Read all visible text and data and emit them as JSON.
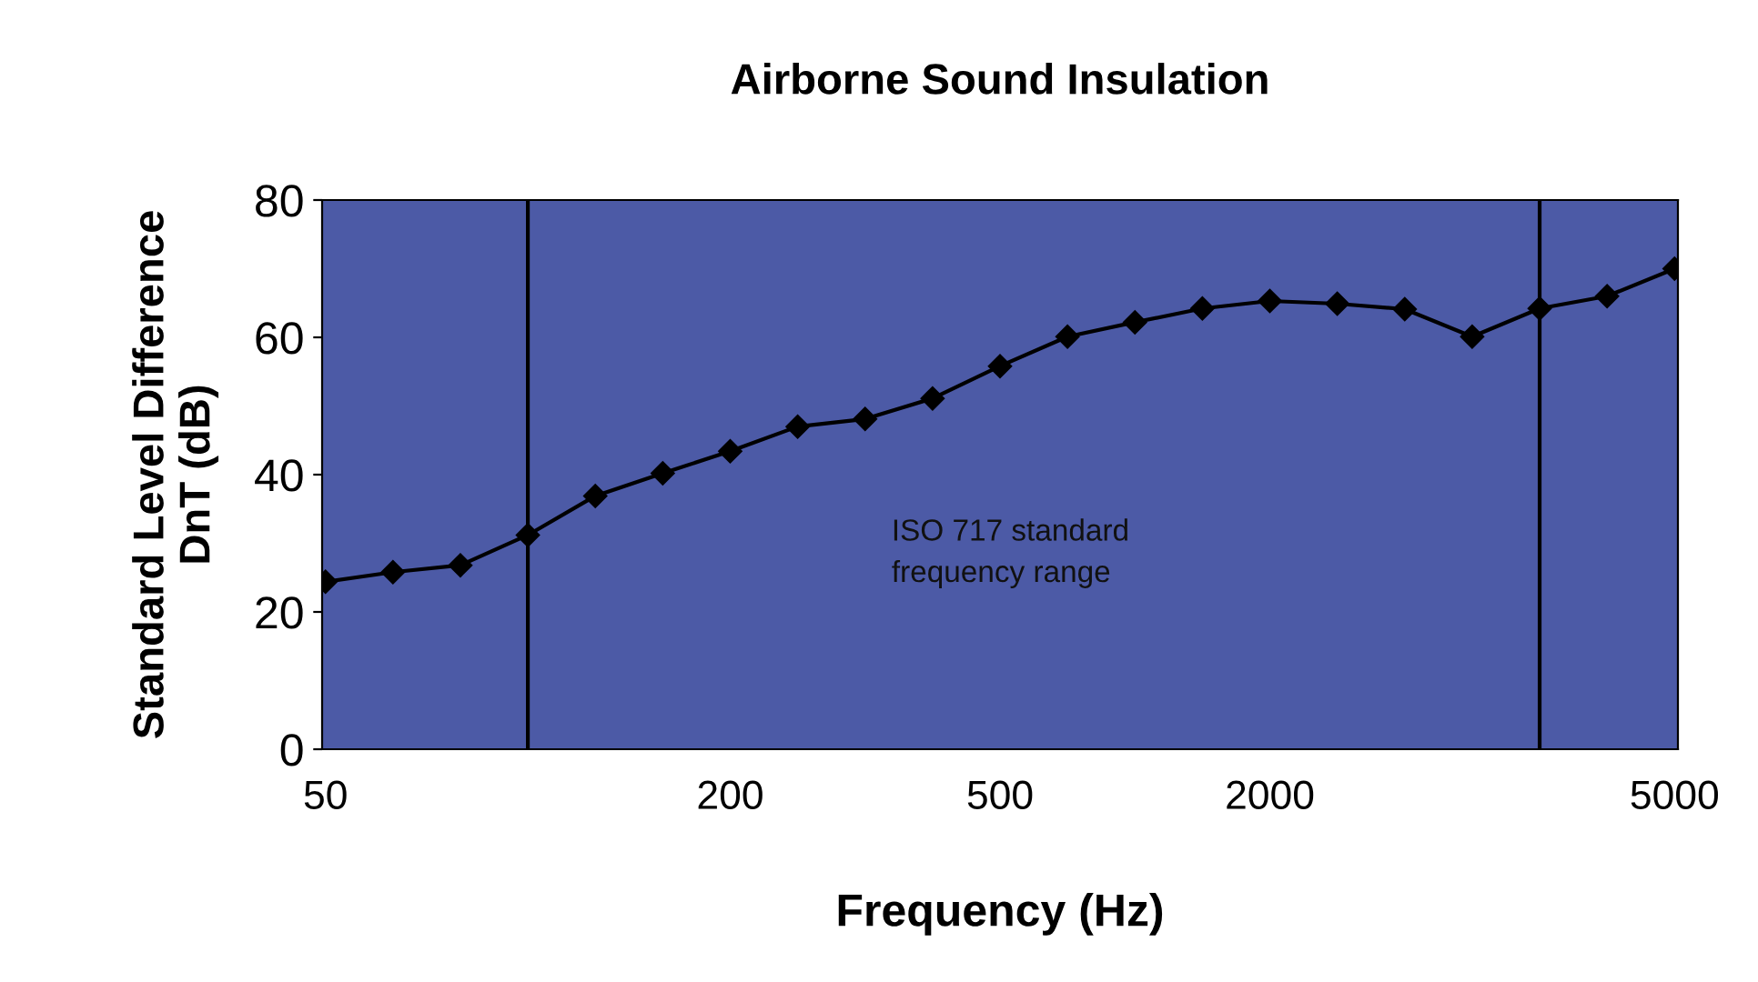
{
  "chart_data": {
    "type": "line",
    "title": "Airborne Sound Insulation",
    "xlabel": "Frequency (Hz)",
    "ylabel": "Standard Level Difference\nDnT (dB)",
    "categories": [
      "50",
      null,
      null,
      null,
      null,
      null,
      "200",
      null,
      null,
      null,
      "500",
      null,
      null,
      null,
      "2000",
      null,
      null,
      null,
      null,
      null,
      "5000"
    ],
    "series": [
      {
        "color": "#000000",
        "values": [
          24.4,
          25.8,
          26.8,
          31.2,
          36.9,
          40.2,
          43.4,
          47.0,
          48.1,
          51.1,
          55.8,
          60.1,
          62.2,
          64.2,
          65.3,
          64.9,
          64.1,
          60.1,
          64.2,
          66.0,
          70.0
        ]
      }
    ],
    "ylim": [
      0,
      80
    ],
    "yticks": [
      0,
      20,
      40,
      60,
      80
    ],
    "annotations": [
      "ISO 717 standard\nfrequency range"
    ],
    "marker": "diamond",
    "line_style": "solid"
  }
}
